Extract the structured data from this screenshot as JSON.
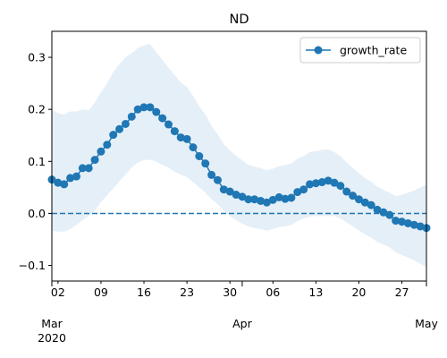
{
  "chart_data": {
    "type": "line",
    "title": "ND",
    "xlabel": "",
    "ylabel": "",
    "ylim": [
      -0.13,
      0.35
    ],
    "y_ticks": [
      -0.1,
      0.0,
      0.1,
      0.2,
      0.3
    ],
    "y_tick_labels": [
      "−0.1",
      "0.0",
      "0.1",
      "0.2",
      "0.3"
    ],
    "x_start_date": "2020-03-01",
    "xlim": [
      "2020-03-01",
      "2020-05-01"
    ],
    "x_minor_ticks": [
      {
        "date": "2020-03-02",
        "label": "02"
      },
      {
        "date": "2020-03-09",
        "label": "09"
      },
      {
        "date": "2020-03-16",
        "label": "16"
      },
      {
        "date": "2020-03-23",
        "label": "23"
      },
      {
        "date": "2020-03-30",
        "label": "30"
      },
      {
        "date": "2020-04-06",
        "label": "06"
      },
      {
        "date": "2020-04-13",
        "label": "13"
      },
      {
        "date": "2020-04-20",
        "label": "20"
      },
      {
        "date": "2020-04-27",
        "label": "27"
      }
    ],
    "x_major_ticks": [
      {
        "date": "2020-03-01",
        "label": "Mar",
        "sublabel": "2020"
      },
      {
        "date": "2020-04-01",
        "label": "Apr",
        "sublabel": ""
      },
      {
        "date": "2020-05-01",
        "label": "May",
        "sublabel": ""
      }
    ],
    "reference_line": {
      "y": 0.0,
      "style": "dashed"
    },
    "legend": {
      "position": "top-right",
      "entries": [
        "growth_rate"
      ]
    },
    "grid": false,
    "series": [
      {
        "name": "growth_rate",
        "color": "#1f77b4",
        "marker": "circle",
        "x": [
          "2020-03-01",
          "2020-03-02",
          "2020-03-03",
          "2020-03-04",
          "2020-03-05",
          "2020-03-06",
          "2020-03-07",
          "2020-03-08",
          "2020-03-09",
          "2020-03-10",
          "2020-03-11",
          "2020-03-12",
          "2020-03-13",
          "2020-03-14",
          "2020-03-15",
          "2020-03-16",
          "2020-03-17",
          "2020-03-18",
          "2020-03-19",
          "2020-03-20",
          "2020-03-21",
          "2020-03-22",
          "2020-03-23",
          "2020-03-24",
          "2020-03-25",
          "2020-03-26",
          "2020-03-27",
          "2020-03-28",
          "2020-03-29",
          "2020-03-30",
          "2020-03-31",
          "2020-04-01",
          "2020-04-02",
          "2020-04-03",
          "2020-04-04",
          "2020-04-05",
          "2020-04-06",
          "2020-04-07",
          "2020-04-08",
          "2020-04-09",
          "2020-04-10",
          "2020-04-11",
          "2020-04-12",
          "2020-04-13",
          "2020-04-14",
          "2020-04-15",
          "2020-04-16",
          "2020-04-17",
          "2020-04-18",
          "2020-04-19",
          "2020-04-20",
          "2020-04-21",
          "2020-04-22",
          "2020-04-23",
          "2020-04-24",
          "2020-04-25",
          "2020-04-26",
          "2020-04-27",
          "2020-04-28",
          "2020-04-29",
          "2020-04-30",
          "2020-05-01"
        ],
        "values": [
          0.065,
          0.059,
          0.056,
          0.068,
          0.071,
          0.087,
          0.087,
          0.103,
          0.119,
          0.132,
          0.151,
          0.162,
          0.172,
          0.186,
          0.2,
          0.204,
          0.204,
          0.195,
          0.183,
          0.171,
          0.158,
          0.146,
          0.143,
          0.127,
          0.11,
          0.096,
          0.074,
          0.064,
          0.046,
          0.042,
          0.036,
          0.032,
          0.027,
          0.027,
          0.024,
          0.021,
          0.026,
          0.031,
          0.028,
          0.03,
          0.041,
          0.046,
          0.056,
          0.058,
          0.06,
          0.063,
          0.059,
          0.053,
          0.042,
          0.034,
          0.027,
          0.021,
          0.016,
          0.007,
          0.002,
          -0.003,
          -0.014,
          -0.016,
          -0.019,
          -0.022,
          -0.025,
          -0.028
        ],
        "ci_upper": [
          0.2,
          0.193,
          0.19,
          0.196,
          0.196,
          0.2,
          0.198,
          0.213,
          0.233,
          0.25,
          0.272,
          0.287,
          0.3,
          0.308,
          0.318,
          0.323,
          0.326,
          0.31,
          0.295,
          0.28,
          0.266,
          0.252,
          0.243,
          0.226,
          0.206,
          0.19,
          0.168,
          0.152,
          0.133,
          0.121,
          0.111,
          0.102,
          0.093,
          0.09,
          0.087,
          0.083,
          0.086,
          0.091,
          0.093,
          0.096,
          0.105,
          0.11,
          0.118,
          0.12,
          0.122,
          0.123,
          0.118,
          0.11,
          0.098,
          0.087,
          0.077,
          0.068,
          0.061,
          0.051,
          0.045,
          0.04,
          0.033,
          0.036,
          0.04,
          0.044,
          0.05,
          0.055
        ],
        "ci_lower": [
          -0.033,
          -0.035,
          -0.035,
          -0.03,
          -0.022,
          -0.013,
          -0.005,
          0.005,
          0.022,
          0.035,
          0.048,
          0.062,
          0.075,
          0.088,
          0.098,
          0.103,
          0.103,
          0.1,
          0.093,
          0.088,
          0.08,
          0.074,
          0.07,
          0.06,
          0.05,
          0.04,
          0.027,
          0.018,
          0.005,
          -0.005,
          -0.013,
          -0.02,
          -0.025,
          -0.028,
          -0.03,
          -0.033,
          -0.03,
          -0.026,
          -0.025,
          -0.022,
          -0.015,
          -0.01,
          -0.006,
          -0.005,
          -0.005,
          -0.005,
          -0.005,
          -0.01,
          -0.017,
          -0.025,
          -0.033,
          -0.04,
          -0.047,
          -0.055,
          -0.06,
          -0.065,
          -0.075,
          -0.08,
          -0.085,
          -0.09,
          -0.097,
          -0.103
        ],
        "band_color": "#c6dbef"
      }
    ]
  }
}
